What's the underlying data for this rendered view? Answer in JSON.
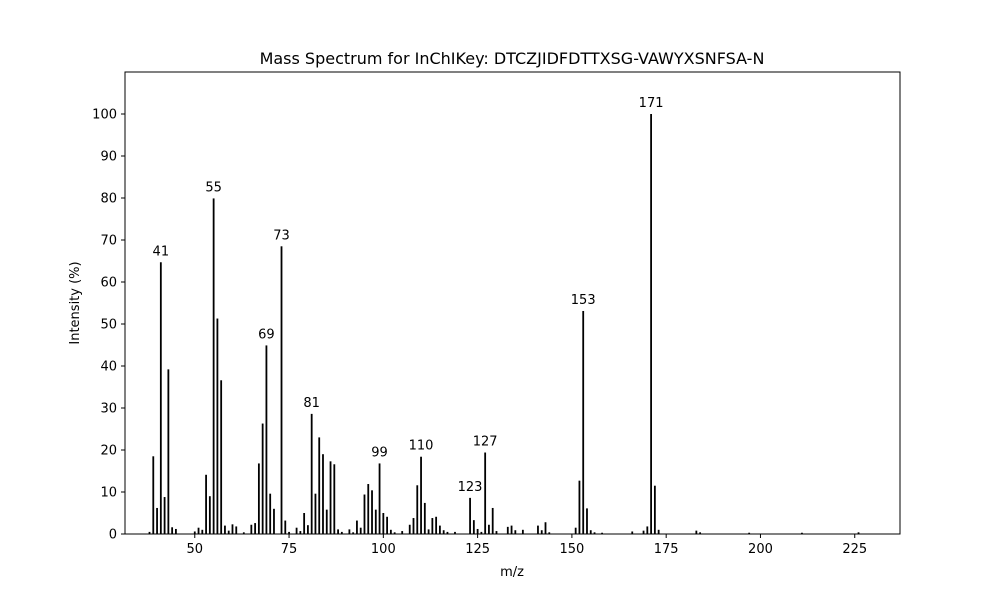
{
  "chart_data": {
    "type": "bar",
    "title": "Mass Spectrum for InChIKey: DTCZJIDFDTTXSG-VAWYXSNFSA-N",
    "xlabel": "m/z",
    "ylabel": "Intensity (%)",
    "xlim": [
      31.5,
      237
    ],
    "ylim": [
      0,
      110
    ],
    "xticks": [
      50,
      75,
      100,
      125,
      150,
      175,
      200,
      225
    ],
    "yticks": [
      0,
      10,
      20,
      30,
      40,
      50,
      60,
      70,
      80,
      90,
      100
    ],
    "grid": false,
    "bar_color": "#000000",
    "peaks": [
      {
        "mz": 38,
        "intensity": 0.5
      },
      {
        "mz": 39,
        "intensity": 18.5
      },
      {
        "mz": 40,
        "intensity": 6.2
      },
      {
        "mz": 41,
        "intensity": 64.7
      },
      {
        "mz": 42,
        "intensity": 8.8
      },
      {
        "mz": 43,
        "intensity": 39.2
      },
      {
        "mz": 44,
        "intensity": 1.6
      },
      {
        "mz": 45,
        "intensity": 1.2
      },
      {
        "mz": 50,
        "intensity": 0.6
      },
      {
        "mz": 51,
        "intensity": 1.5
      },
      {
        "mz": 52,
        "intensity": 1.0
      },
      {
        "mz": 53,
        "intensity": 14.1
      },
      {
        "mz": 54,
        "intensity": 9.0
      },
      {
        "mz": 55,
        "intensity": 79.9
      },
      {
        "mz": 56,
        "intensity": 51.3
      },
      {
        "mz": 57,
        "intensity": 36.6
      },
      {
        "mz": 58,
        "intensity": 2.0
      },
      {
        "mz": 59,
        "intensity": 0.8
      },
      {
        "mz": 60,
        "intensity": 2.3
      },
      {
        "mz": 61,
        "intensity": 1.8
      },
      {
        "mz": 63,
        "intensity": 0.4
      },
      {
        "mz": 65,
        "intensity": 2.2
      },
      {
        "mz": 66,
        "intensity": 2.6
      },
      {
        "mz": 67,
        "intensity": 16.8
      },
      {
        "mz": 68,
        "intensity": 26.3
      },
      {
        "mz": 69,
        "intensity": 44.9
      },
      {
        "mz": 70,
        "intensity": 9.6
      },
      {
        "mz": 71,
        "intensity": 6.0
      },
      {
        "mz": 73,
        "intensity": 68.5
      },
      {
        "mz": 74,
        "intensity": 3.2
      },
      {
        "mz": 75,
        "intensity": 0.5
      },
      {
        "mz": 77,
        "intensity": 1.5
      },
      {
        "mz": 78,
        "intensity": 0.7
      },
      {
        "mz": 79,
        "intensity": 5.0
      },
      {
        "mz": 80,
        "intensity": 2.1
      },
      {
        "mz": 81,
        "intensity": 28.6
      },
      {
        "mz": 82,
        "intensity": 9.6
      },
      {
        "mz": 83,
        "intensity": 23.0
      },
      {
        "mz": 84,
        "intensity": 19.0
      },
      {
        "mz": 85,
        "intensity": 5.8
      },
      {
        "mz": 86,
        "intensity": 17.3
      },
      {
        "mz": 87,
        "intensity": 16.6
      },
      {
        "mz": 88,
        "intensity": 1.1
      },
      {
        "mz": 89,
        "intensity": 0.5
      },
      {
        "mz": 91,
        "intensity": 1.1
      },
      {
        "mz": 92,
        "intensity": 0.4
      },
      {
        "mz": 93,
        "intensity": 3.2
      },
      {
        "mz": 94,
        "intensity": 1.5
      },
      {
        "mz": 95,
        "intensity": 9.4
      },
      {
        "mz": 96,
        "intensity": 11.9
      },
      {
        "mz": 97,
        "intensity": 10.4
      },
      {
        "mz": 98,
        "intensity": 5.8
      },
      {
        "mz": 99,
        "intensity": 16.8
      },
      {
        "mz": 100,
        "intensity": 5.0
      },
      {
        "mz": 101,
        "intensity": 4.1
      },
      {
        "mz": 102,
        "intensity": 1.0
      },
      {
        "mz": 103,
        "intensity": 0.4
      },
      {
        "mz": 105,
        "intensity": 0.7
      },
      {
        "mz": 107,
        "intensity": 2.2
      },
      {
        "mz": 108,
        "intensity": 3.8
      },
      {
        "mz": 109,
        "intensity": 11.6
      },
      {
        "mz": 110,
        "intensity": 18.4
      },
      {
        "mz": 111,
        "intensity": 7.4
      },
      {
        "mz": 112,
        "intensity": 1.1
      },
      {
        "mz": 113,
        "intensity": 3.8
      },
      {
        "mz": 114,
        "intensity": 4.1
      },
      {
        "mz": 115,
        "intensity": 2.0
      },
      {
        "mz": 116,
        "intensity": 0.9
      },
      {
        "mz": 117,
        "intensity": 0.5
      },
      {
        "mz": 119,
        "intensity": 0.5
      },
      {
        "mz": 123,
        "intensity": 8.6
      },
      {
        "mz": 124,
        "intensity": 3.3
      },
      {
        "mz": 125,
        "intensity": 1.2
      },
      {
        "mz": 126,
        "intensity": 0.5
      },
      {
        "mz": 127,
        "intensity": 19.4
      },
      {
        "mz": 128,
        "intensity": 2.2
      },
      {
        "mz": 129,
        "intensity": 6.2
      },
      {
        "mz": 130,
        "intensity": 0.7
      },
      {
        "mz": 133,
        "intensity": 1.7
      },
      {
        "mz": 134,
        "intensity": 2.0
      },
      {
        "mz": 135,
        "intensity": 0.9
      },
      {
        "mz": 137,
        "intensity": 1.0
      },
      {
        "mz": 141,
        "intensity": 2.0
      },
      {
        "mz": 142,
        "intensity": 0.9
      },
      {
        "mz": 143,
        "intensity": 2.8
      },
      {
        "mz": 144,
        "intensity": 0.4
      },
      {
        "mz": 151,
        "intensity": 1.5
      },
      {
        "mz": 152,
        "intensity": 12.7
      },
      {
        "mz": 153,
        "intensity": 53.1
      },
      {
        "mz": 154,
        "intensity": 6.1
      },
      {
        "mz": 155,
        "intensity": 0.9
      },
      {
        "mz": 156,
        "intensity": 0.4
      },
      {
        "mz": 158,
        "intensity": 0.3
      },
      {
        "mz": 166,
        "intensity": 0.6
      },
      {
        "mz": 169,
        "intensity": 0.8
      },
      {
        "mz": 170,
        "intensity": 1.8
      },
      {
        "mz": 171,
        "intensity": 100.0
      },
      {
        "mz": 172,
        "intensity": 11.5
      },
      {
        "mz": 173,
        "intensity": 1.0
      },
      {
        "mz": 183,
        "intensity": 0.8
      },
      {
        "mz": 184,
        "intensity": 0.4
      },
      {
        "mz": 197,
        "intensity": 0.3
      },
      {
        "mz": 211,
        "intensity": 0.3
      },
      {
        "mz": 226,
        "intensity": 0.4
      }
    ],
    "labeled_peaks": [
      "41",
      "55",
      "69",
      "73",
      "81",
      "99",
      "110",
      "123",
      "127",
      "153",
      "171"
    ]
  }
}
